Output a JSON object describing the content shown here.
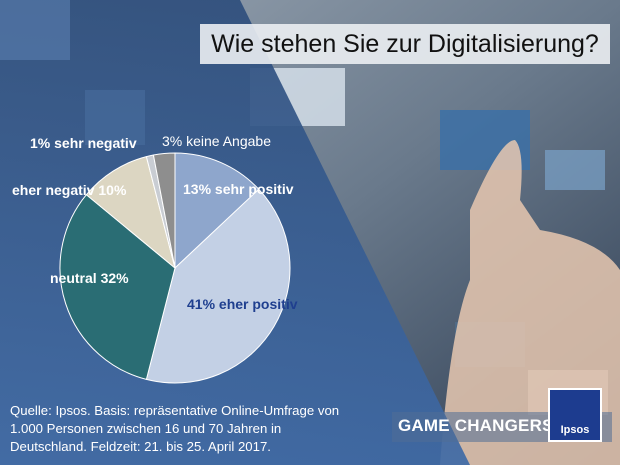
{
  "title": "Wie stehen Sie zur Digitalisierung?",
  "chart_data": {
    "type": "pie",
    "slices": [
      {
        "label": "13% sehr positiv",
        "value": 13,
        "color": "#8ea6cc"
      },
      {
        "label": "41% eher positiv",
        "value": 41,
        "color": "#c3d0e5"
      },
      {
        "label": "neutral 32%",
        "value": 32,
        "color": "#2a6d74"
      },
      {
        "label": "eher negativ 10%",
        "value": 10,
        "color": "#dcd6c2"
      },
      {
        "label": "1% sehr negativ",
        "value": 1,
        "color": "#c9cdd3"
      },
      {
        "label": "3% keine Angabe",
        "value": 3,
        "color": "#8e8e8e"
      }
    ]
  },
  "source_lines": [
    "Quelle: Ipsos. Basis: repräsentative Online-Umfrage von",
    "1.000 Personen zwischen 16 und 70 Jahren in",
    "Deutschland. Feldzeit: 21. bis 25. April 2017."
  ],
  "brand": "GAME CHANGERS",
  "logo_text": "Ipsos",
  "colors": {
    "label_dark": "#1f3f8f",
    "label_light": "#ffffff"
  }
}
